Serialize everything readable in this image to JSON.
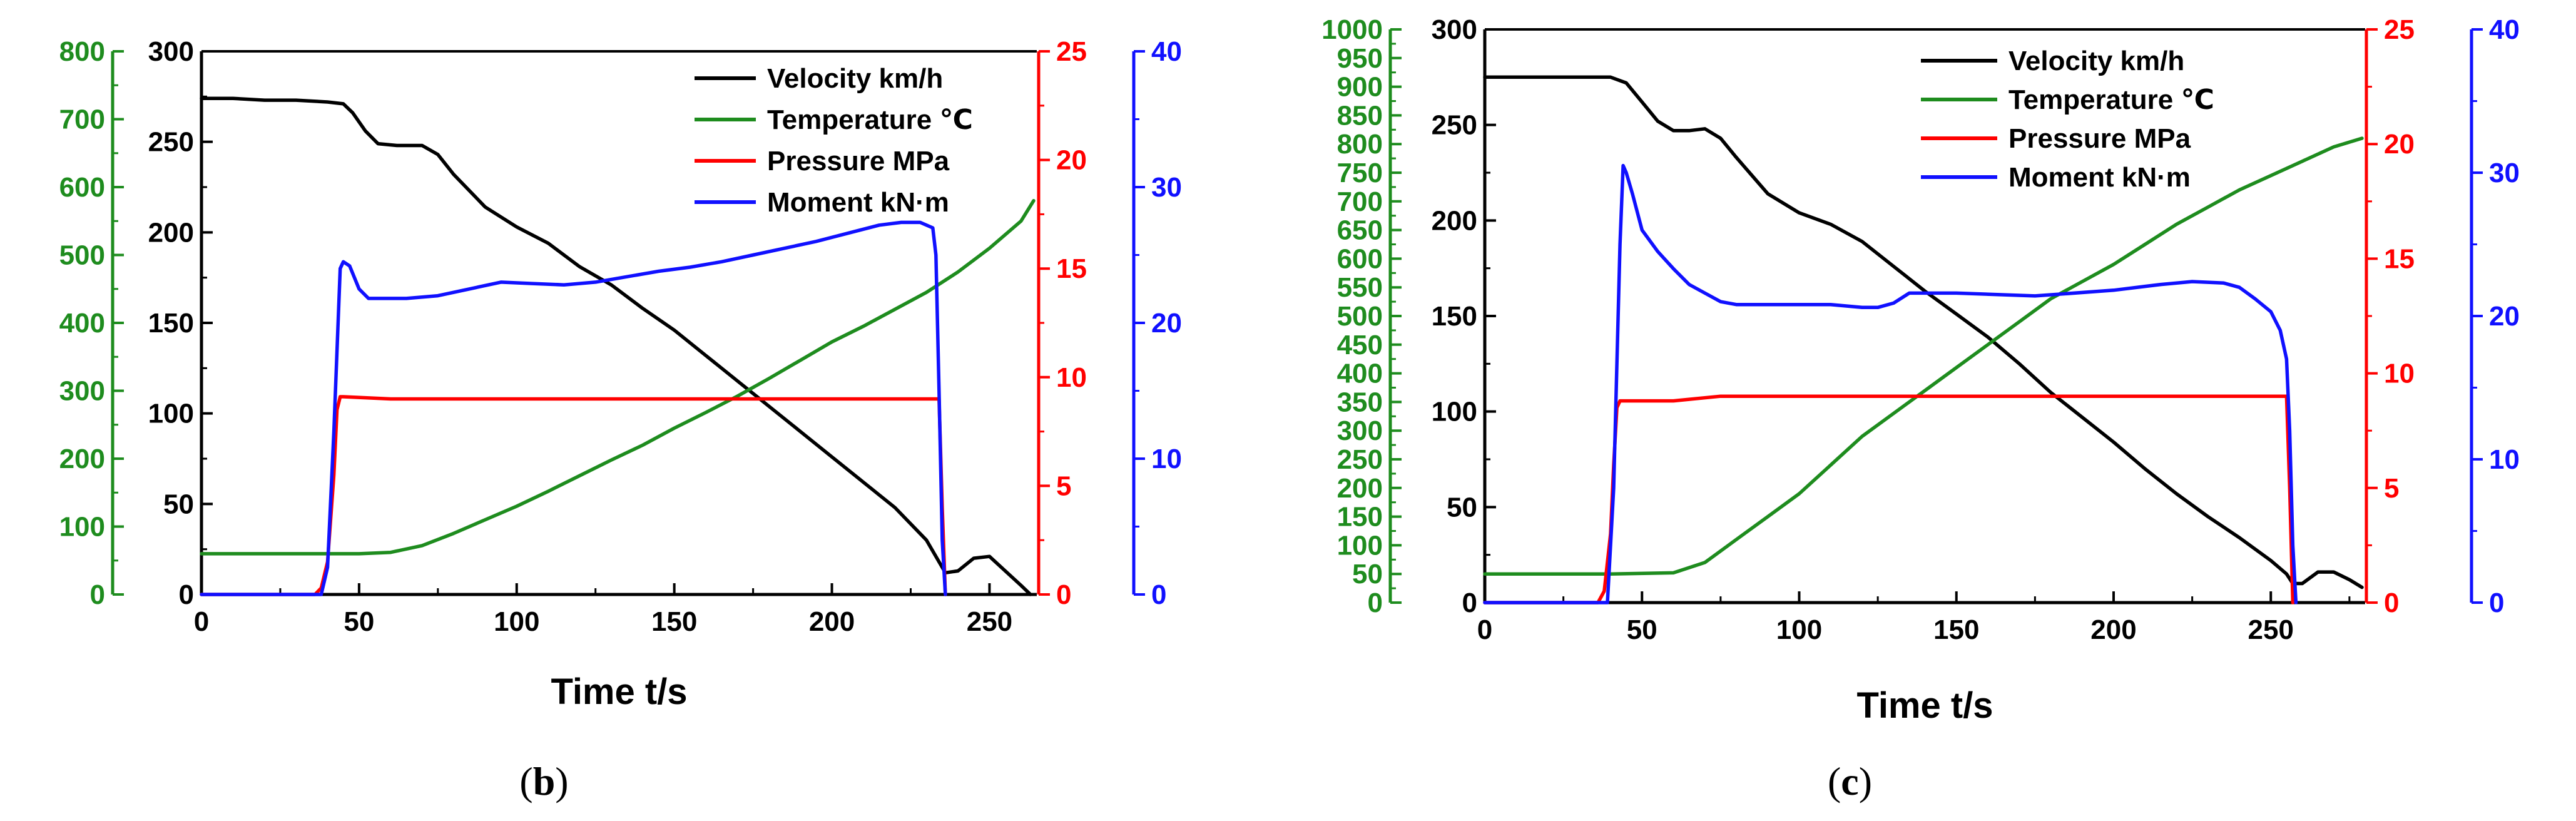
{
  "figure": {
    "colors": {
      "velocity": "#000000",
      "temperature": "#1e8c1e",
      "pressure": "#ff0000",
      "moment": "#1010ff",
      "frame": "#000000"
    }
  },
  "chart_data": [
    {
      "id": "b",
      "type": "line",
      "panel_label": "(b)",
      "panel_label_letter": "b",
      "xlabel": "Time  t/s",
      "xlim": [
        0,
        265
      ],
      "xticks": [
        0,
        50,
        100,
        150,
        200,
        250
      ],
      "axes": {
        "velocity": {
          "ylim": [
            0,
            300
          ],
          "ticks": [
            0,
            50,
            100,
            150,
            200,
            250,
            300
          ]
        },
        "temperature": {
          "ylim": [
            0,
            800
          ],
          "ticks": [
            0,
            100,
            200,
            300,
            400,
            500,
            600,
            700,
            800
          ]
        },
        "pressure": {
          "ylim": [
            0,
            25
          ],
          "ticks": [
            0,
            5,
            10,
            15,
            20,
            25
          ]
        },
        "moment": {
          "ylim": [
            0,
            40
          ],
          "ticks": [
            0,
            10,
            20,
            30,
            40
          ]
        }
      },
      "legend": [
        {
          "key": "velocity",
          "label": "Velocity  km/h"
        },
        {
          "key": "temperature",
          "label": "Temperature  ℃"
        },
        {
          "key": "pressure",
          "label": "Pressure  MPa"
        },
        {
          "key": "moment",
          "label": "Moment  kN·m"
        }
      ],
      "series": [
        {
          "name": "Velocity",
          "key": "velocity",
          "axis": "velocity",
          "x": [
            0,
            10,
            20,
            30,
            40,
            45,
            48,
            52,
            56,
            62,
            70,
            75,
            80,
            90,
            100,
            110,
            120,
            130,
            140,
            150,
            160,
            170,
            180,
            190,
            200,
            210,
            220,
            230,
            234,
            236,
            240,
            245,
            250,
            255,
            260,
            263
          ],
          "y": [
            274,
            274,
            273,
            273,
            272,
            271,
            266,
            256,
            249,
            248,
            248,
            243,
            232,
            214,
            203,
            194,
            181,
            171,
            158,
            146,
            132,
            118,
            104,
            90,
            76,
            62,
            48,
            30,
            18,
            12,
            13,
            20,
            21,
            13,
            5,
            0
          ]
        },
        {
          "name": "Temperature",
          "key": "temperature",
          "axis": "temperature",
          "x": [
            0,
            20,
            40,
            50,
            60,
            70,
            80,
            90,
            100,
            110,
            120,
            130,
            140,
            150,
            160,
            170,
            180,
            190,
            200,
            210,
            220,
            230,
            240,
            250,
            260,
            264
          ],
          "y": [
            60,
            60,
            60,
            60,
            62,
            72,
            90,
            110,
            130,
            152,
            175,
            198,
            220,
            245,
            268,
            292,
            318,
            345,
            372,
            395,
            420,
            445,
            475,
            510,
            550,
            580
          ]
        },
        {
          "name": "Pressure",
          "key": "pressure",
          "axis": "pressure",
          "x": [
            0,
            36,
            38,
            40,
            42,
            43,
            44,
            45,
            60,
            100,
            150,
            200,
            234,
            235,
            236
          ],
          "y": [
            0,
            0,
            0.3,
            1.5,
            5.5,
            8.5,
            9.1,
            9.1,
            9.0,
            9.0,
            9.0,
            9.0,
            9.0,
            4.0,
            0
          ]
        },
        {
          "name": "Moment",
          "key": "moment",
          "axis": "moment",
          "x": [
            0,
            38,
            40,
            42,
            44,
            45,
            47,
            50,
            53,
            57,
            65,
            75,
            85,
            95,
            105,
            115,
            125,
            135,
            145,
            155,
            165,
            175,
            185,
            195,
            205,
            215,
            222,
            228,
            232,
            233,
            234,
            235,
            236
          ],
          "y": [
            0,
            0,
            2,
            12,
            24,
            24.5,
            24.2,
            22.5,
            21.8,
            21.8,
            21.8,
            22.0,
            22.5,
            23.0,
            22.9,
            22.8,
            23.0,
            23.4,
            23.8,
            24.1,
            24.5,
            25.0,
            25.5,
            26.0,
            26.6,
            27.2,
            27.4,
            27.4,
            27.0,
            25,
            15,
            4,
            0
          ]
        }
      ]
    },
    {
      "id": "c",
      "type": "line",
      "panel_label": "(c)",
      "panel_label_letter": "c",
      "xlabel": "Time  t/s",
      "xlim": [
        0,
        280
      ],
      "xticks": [
        0,
        50,
        100,
        150,
        200,
        250
      ],
      "axes": {
        "velocity": {
          "ylim": [
            0,
            300
          ],
          "ticks": [
            0,
            50,
            100,
            150,
            200,
            250,
            300
          ]
        },
        "temperature": {
          "ylim": [
            0,
            1000
          ],
          "ticks": [
            0,
            50,
            100,
            150,
            200,
            250,
            300,
            350,
            400,
            450,
            500,
            550,
            600,
            650,
            700,
            750,
            800,
            850,
            900,
            950,
            1000
          ]
        },
        "pressure": {
          "ylim": [
            0,
            25
          ],
          "ticks": [
            0,
            5,
            10,
            15,
            20,
            25
          ]
        },
        "moment": {
          "ylim": [
            0,
            40
          ],
          "ticks": [
            0,
            10,
            20,
            30,
            40
          ]
        }
      },
      "legend": [
        {
          "key": "velocity",
          "label": "Velocity  km/h"
        },
        {
          "key": "temperature",
          "label": "Temperature  ℃"
        },
        {
          "key": "pressure",
          "label": "Pressure  MPa"
        },
        {
          "key": "moment",
          "label": "Moment  kN·m"
        }
      ],
      "series": [
        {
          "name": "Velocity",
          "key": "velocity",
          "axis": "velocity",
          "x": [
            0,
            10,
            20,
            30,
            40,
            45,
            50,
            55,
            60,
            65,
            70,
            75,
            80,
            90,
            100,
            110,
            120,
            130,
            140,
            150,
            160,
            170,
            180,
            190,
            200,
            210,
            220,
            230,
            240,
            250,
            255,
            257,
            260,
            265,
            270,
            275,
            279
          ],
          "y": [
            275,
            275,
            275,
            275,
            275,
            272,
            262,
            252,
            247,
            247,
            248,
            243,
            233,
            214,
            204,
            198,
            189,
            176,
            163,
            151,
            139,
            125,
            110,
            97,
            84,
            70,
            57,
            45,
            34,
            22,
            15,
            10,
            10,
            16,
            16,
            12,
            8
          ]
        },
        {
          "name": "Temperature",
          "key": "temperature",
          "axis": "temperature",
          "x": [
            0,
            20,
            40,
            60,
            70,
            80,
            90,
            100,
            110,
            120,
            130,
            140,
            150,
            160,
            170,
            180,
            190,
            200,
            210,
            220,
            230,
            240,
            250,
            260,
            270,
            279
          ],
          "y": [
            50,
            50,
            50,
            52,
            70,
            110,
            150,
            190,
            240,
            290,
            330,
            370,
            410,
            450,
            490,
            530,
            560,
            590,
            625,
            660,
            690,
            720,
            745,
            770,
            795,
            810
          ]
        },
        {
          "name": "Pressure",
          "key": "pressure",
          "axis": "pressure",
          "x": [
            0,
            36,
            38,
            40,
            41,
            42,
            43,
            60,
            75,
            100,
            150,
            200,
            255,
            256,
            257
          ],
          "y": [
            0,
            0,
            0.5,
            3,
            6,
            8.5,
            8.8,
            8.8,
            9.0,
            9.0,
            9.0,
            9.0,
            9.0,
            5.0,
            0
          ]
        },
        {
          "name": "Moment",
          "key": "moment",
          "axis": "moment",
          "x": [
            0,
            39,
            41,
            43,
            44,
            45,
            47,
            50,
            55,
            60,
            65,
            70,
            75,
            80,
            90,
            100,
            110,
            120,
            125,
            130,
            135,
            150,
            175,
            200,
            215,
            225,
            235,
            240,
            245,
            250,
            253,
            255,
            256,
            257,
            258
          ],
          "y": [
            0,
            0,
            8,
            25,
            30.5,
            30,
            28.5,
            26,
            24.5,
            23.3,
            22.2,
            21.6,
            21.0,
            20.8,
            20.8,
            20.8,
            20.8,
            20.6,
            20.6,
            20.9,
            21.6,
            21.6,
            21.4,
            21.8,
            22.2,
            22.4,
            22.3,
            22.0,
            21.2,
            20.3,
            19.0,
            17,
            12,
            4,
            0
          ]
        }
      ]
    }
  ]
}
